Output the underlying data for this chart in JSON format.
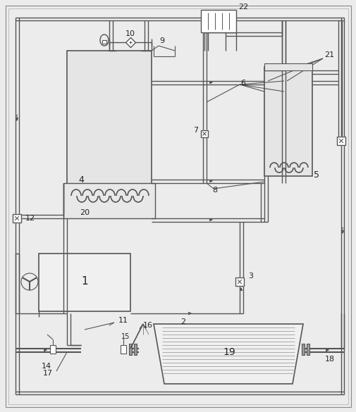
{
  "bg_color": "#ececec",
  "lc": "#555555",
  "lw": 1.2,
  "fig_w": 5.06,
  "fig_h": 5.85,
  "dpi": 100
}
